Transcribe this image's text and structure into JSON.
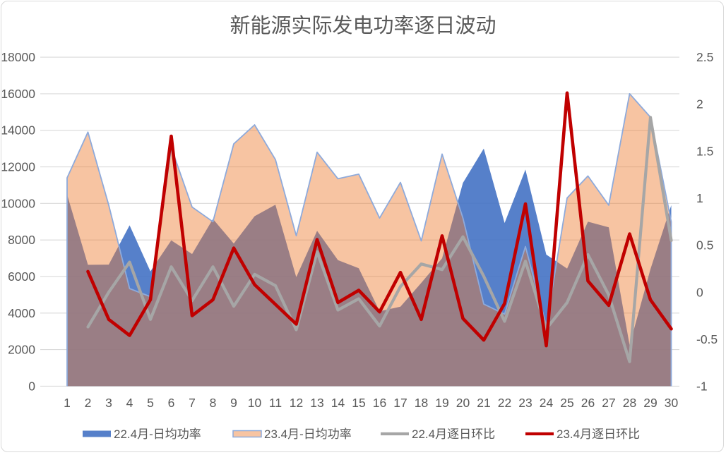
{
  "title": "新能源实际发电功率逐日波动",
  "legend": [
    {
      "label": "22.4月-日均功率",
      "type": "area",
      "color": "#4472C4"
    },
    {
      "label": "23.4月-日均功率",
      "type": "area",
      "color": "#F7C7A3",
      "border": "#8EAADB"
    },
    {
      "label": "22.4月逐日环比",
      "type": "line",
      "color": "#A6A6A6"
    },
    {
      "label": "23.4月逐日环比",
      "type": "line",
      "color": "#C00000"
    }
  ],
  "chart_data": {
    "type": "combo-area-line",
    "title": "新能源实际发电功率逐日波动",
    "x": [
      1,
      2,
      3,
      4,
      5,
      6,
      7,
      8,
      9,
      10,
      11,
      12,
      13,
      14,
      15,
      16,
      17,
      18,
      19,
      20,
      21,
      22,
      23,
      24,
      25,
      26,
      27,
      28,
      29,
      30
    ],
    "x_axis": {
      "labels": [
        "1",
        "2",
        "3",
        "4",
        "5",
        "6",
        "7",
        "8",
        "9",
        "10",
        "11",
        "12",
        "13",
        "14",
        "15",
        "16",
        "17",
        "18",
        "19",
        "20",
        "21",
        "22",
        "23",
        "24",
        "25",
        "26",
        "27",
        "28",
        "29",
        "30"
      ]
    },
    "left_axis": {
      "min": 0,
      "max": 18000,
      "step": 2000,
      "tick_labels": [
        "0",
        "2000",
        "4000",
        "6000",
        "8000",
        "10000",
        "12000",
        "14000",
        "16000",
        "18000"
      ]
    },
    "right_axis": {
      "min": -1,
      "max": 2.5,
      "step": 0.5,
      "tick_labels": [
        "2.5",
        "2",
        "1.5",
        "1",
        "0.5",
        "0",
        "-0.5",
        "-1"
      ]
    },
    "series": [
      {
        "name": "22.4月-日均功率",
        "type": "area",
        "axis": "left",
        "values": [
          10480,
          6640,
          6650,
          8800,
          6280,
          7980,
          7230,
          9150,
          7800,
          9300,
          9930,
          5960,
          8500,
          6900,
          6450,
          4100,
          4350,
          5650,
          7000,
          11120,
          13000,
          8930,
          11850,
          7200,
          6430,
          9000,
          8690,
          2240,
          6400,
          9900
        ]
      },
      {
        "name": "23.4月-日均功率",
        "type": "area",
        "axis": "left",
        "values": [
          11400,
          13900,
          9900,
          5340,
          4900,
          13050,
          9800,
          9000,
          13260,
          14300,
          12400,
          8230,
          12800,
          11350,
          11600,
          9200,
          11150,
          7950,
          12700,
          9200,
          4490,
          3940,
          7640,
          3300,
          10300,
          11500,
          9900,
          16000,
          14720,
          9000
        ]
      },
      {
        "name": "22.4月逐日环比",
        "type": "line",
        "axis": "right",
        "values": [
          null,
          -0.37,
          0.0,
          0.32,
          -0.29,
          0.27,
          -0.09,
          0.27,
          -0.15,
          0.19,
          0.07,
          -0.4,
          0.43,
          -0.19,
          -0.07,
          -0.36,
          0.06,
          0.3,
          0.24,
          0.59,
          0.17,
          -0.31,
          0.33,
          -0.39,
          -0.11,
          0.4,
          -0.03,
          -0.74,
          1.86,
          0.55
        ]
      },
      {
        "name": "23.4月逐日环比",
        "type": "line",
        "axis": "right",
        "values": [
          null,
          0.22,
          -0.29,
          -0.46,
          -0.08,
          1.66,
          -0.25,
          -0.08,
          0.47,
          0.08,
          -0.13,
          -0.34,
          0.56,
          -0.11,
          0.02,
          -0.21,
          0.21,
          -0.29,
          0.6,
          -0.28,
          -0.51,
          -0.12,
          0.94,
          -0.57,
          2.12,
          0.12,
          -0.14,
          0.62,
          -0.08,
          -0.39
        ]
      }
    ],
    "grid": true,
    "legend_position": "bottom"
  },
  "style": {
    "background": "#FFFFFF",
    "frame_border": "#D9D9D9",
    "gridline": "#D9D9D9",
    "text_color": "#595959",
    "blue_fill": "rgba(68,114,196,0.9)",
    "orange_fill": "rgba(237,125,49,0.45)",
    "orange_border": "#8EAADB",
    "gray_line": "#A6A6A6",
    "red_line": "#C00000"
  }
}
